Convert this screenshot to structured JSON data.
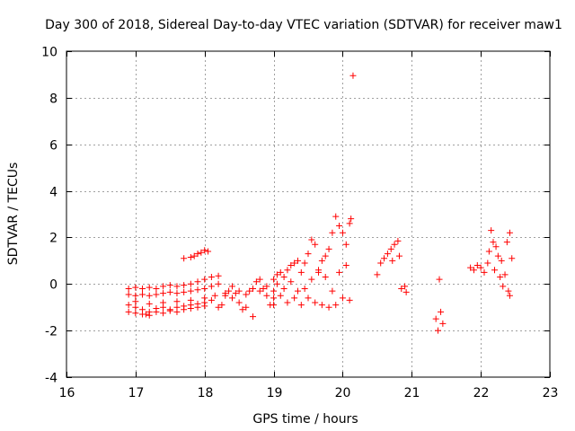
{
  "chart_data": {
    "type": "scatter",
    "title": "Day 300 of 2018, Sidereal Day-to-day VTEC variation (SDTVAR) for receiver maw1",
    "xlabel": "GPS time / hours",
    "ylabel": "SDTVAR / TECUs",
    "xlim": [
      16,
      23
    ],
    "ylim": [
      -4,
      10
    ],
    "xticks": [
      "16",
      "17",
      "18",
      "19",
      "20",
      "21",
      "22",
      "23"
    ],
    "yticks": [
      "-4",
      "-2",
      "0",
      "2",
      "4",
      "6",
      "8",
      "10"
    ],
    "grid": true,
    "marker": "+",
    "color": "#ff0000",
    "series": [
      {
        "name": "SDTVAR",
        "points": [
          [
            16.9,
            -0.2
          ],
          [
            17.0,
            -0.15
          ],
          [
            17.1,
            -0.2
          ],
          [
            17.2,
            -0.15
          ],
          [
            17.3,
            -0.2
          ],
          [
            17.4,
            -0.1
          ],
          [
            17.5,
            -0.05
          ],
          [
            17.6,
            -0.1
          ],
          [
            17.7,
            -0.05
          ],
          [
            17.8,
            0.0
          ],
          [
            17.9,
            0.1
          ],
          [
            18.0,
            0.2
          ],
          [
            18.1,
            0.3
          ],
          [
            18.2,
            0.35
          ],
          [
            16.9,
            -0.45
          ],
          [
            17.0,
            -0.5
          ],
          [
            17.1,
            -0.45
          ],
          [
            17.2,
            -0.5
          ],
          [
            17.3,
            -0.45
          ],
          [
            17.4,
            -0.4
          ],
          [
            17.5,
            -0.35
          ],
          [
            17.6,
            -0.4
          ],
          [
            17.7,
            -0.35
          ],
          [
            17.8,
            -0.3
          ],
          [
            17.9,
            -0.25
          ],
          [
            18.0,
            -0.2
          ],
          [
            18.1,
            -0.1
          ],
          [
            18.2,
            0.0
          ],
          [
            16.9,
            -0.9
          ],
          [
            17.0,
            -1.0
          ],
          [
            17.1,
            -1.1
          ],
          [
            17.15,
            -1.3
          ],
          [
            17.2,
            -1.2
          ],
          [
            17.3,
            -1.05
          ],
          [
            17.4,
            -1.0
          ],
          [
            17.5,
            -1.1
          ],
          [
            17.6,
            -1.0
          ],
          [
            17.7,
            -0.95
          ],
          [
            17.8,
            -0.9
          ],
          [
            17.9,
            -0.85
          ],
          [
            18.0,
            -0.8
          ],
          [
            18.1,
            -0.7
          ],
          [
            16.9,
            -1.2
          ],
          [
            17.0,
            -1.25
          ],
          [
            17.1,
            -1.3
          ],
          [
            17.2,
            -1.35
          ],
          [
            17.3,
            -1.2
          ],
          [
            17.4,
            -1.25
          ],
          [
            17.5,
            -1.15
          ],
          [
            17.6,
            -1.2
          ],
          [
            17.7,
            -1.1
          ],
          [
            17.8,
            -1.05
          ],
          [
            17.9,
            -1.0
          ],
          [
            18.0,
            -0.95
          ],
          [
            17.0,
            -0.75
          ],
          [
            17.2,
            -0.85
          ],
          [
            17.4,
            -0.8
          ],
          [
            17.6,
            -0.75
          ],
          [
            17.8,
            -0.7
          ],
          [
            18.0,
            -0.6
          ],
          [
            18.15,
            -0.5
          ],
          [
            17.7,
            1.1
          ],
          [
            17.8,
            1.15
          ],
          [
            17.85,
            1.2
          ],
          [
            17.9,
            1.3
          ],
          [
            17.95,
            1.35
          ],
          [
            18.0,
            1.45
          ],
          [
            18.05,
            1.4
          ],
          [
            18.2,
            -1.0
          ],
          [
            18.25,
            -0.9
          ],
          [
            18.3,
            -0.5
          ],
          [
            18.35,
            -0.3
          ],
          [
            18.4,
            -0.1
          ],
          [
            18.45,
            -0.4
          ],
          [
            18.5,
            -0.8
          ],
          [
            18.55,
            -1.1
          ],
          [
            18.6,
            -1.0
          ],
          [
            18.65,
            -0.3
          ],
          [
            18.7,
            -1.4
          ],
          [
            18.75,
            0.1
          ],
          [
            18.8,
            0.2
          ],
          [
            18.85,
            -0.2
          ],
          [
            18.9,
            -0.5
          ],
          [
            18.95,
            -0.9
          ],
          [
            19.0,
            -0.6
          ],
          [
            18.3,
            -0.4
          ],
          [
            18.4,
            -0.6
          ],
          [
            18.5,
            -0.3
          ],
          [
            18.6,
            -0.45
          ],
          [
            18.7,
            -0.2
          ],
          [
            18.8,
            -0.3
          ],
          [
            18.9,
            -0.1
          ],
          [
            19.0,
            -0.3
          ],
          [
            19.0,
            0.2
          ],
          [
            19.05,
            0.4
          ],
          [
            19.1,
            0.5
          ],
          [
            19.15,
            0.3
          ],
          [
            19.2,
            0.6
          ],
          [
            19.25,
            0.8
          ],
          [
            19.3,
            0.9
          ],
          [
            19.35,
            1.0
          ],
          [
            19.4,
            0.5
          ],
          [
            19.45,
            0.9
          ],
          [
            19.5,
            1.3
          ],
          [
            19.55,
            1.9
          ],
          [
            19.6,
            1.7
          ],
          [
            19.65,
            0.6
          ],
          [
            19.7,
            1.0
          ],
          [
            19.75,
            1.2
          ],
          [
            19.8,
            1.5
          ],
          [
            19.85,
            2.2
          ],
          [
            19.9,
            2.9
          ],
          [
            19.95,
            2.5
          ],
          [
            20.0,
            2.2
          ],
          [
            20.05,
            1.7
          ],
          [
            20.1,
            2.6
          ],
          [
            20.12,
            2.8
          ],
          [
            19.0,
            -0.9
          ],
          [
            19.1,
            -0.5
          ],
          [
            19.2,
            -0.8
          ],
          [
            19.3,
            -0.6
          ],
          [
            19.4,
            -0.9
          ],
          [
            19.5,
            -0.6
          ],
          [
            19.6,
            -0.8
          ],
          [
            19.7,
            -0.9
          ],
          [
            19.8,
            -1.0
          ],
          [
            19.9,
            -0.9
          ],
          [
            20.0,
            -0.6
          ],
          [
            20.1,
            -0.7
          ],
          [
            19.05,
            0.0
          ],
          [
            19.15,
            -0.2
          ],
          [
            19.25,
            0.1
          ],
          [
            19.35,
            -0.3
          ],
          [
            19.45,
            -0.2
          ],
          [
            19.55,
            0.2
          ],
          [
            19.65,
            0.5
          ],
          [
            19.75,
            0.3
          ],
          [
            19.85,
            -0.3
          ],
          [
            19.95,
            0.5
          ],
          [
            20.05,
            0.8
          ],
          [
            20.15,
            8.95
          ],
          [
            20.5,
            0.4
          ],
          [
            20.55,
            0.9
          ],
          [
            20.6,
            1.1
          ],
          [
            20.65,
            1.3
          ],
          [
            20.7,
            1.5
          ],
          [
            20.72,
            1.0
          ],
          [
            20.75,
            1.7
          ],
          [
            20.8,
            1.85
          ],
          [
            20.82,
            1.2
          ],
          [
            20.85,
            -0.2
          ],
          [
            20.9,
            -0.1
          ],
          [
            20.92,
            -0.35
          ],
          [
            21.35,
            -1.5
          ],
          [
            21.38,
            -2.0
          ],
          [
            21.42,
            -1.2
          ],
          [
            21.45,
            -1.7
          ],
          [
            21.4,
            0.2
          ],
          [
            21.85,
            0.7
          ],
          [
            21.9,
            0.6
          ],
          [
            21.95,
            0.8
          ],
          [
            22.0,
            0.7
          ],
          [
            22.05,
            0.5
          ],
          [
            22.1,
            0.9
          ],
          [
            22.12,
            1.4
          ],
          [
            22.15,
            2.3
          ],
          [
            22.18,
            1.8
          ],
          [
            22.2,
            0.6
          ],
          [
            22.22,
            1.6
          ],
          [
            22.25,
            1.2
          ],
          [
            22.28,
            0.3
          ],
          [
            22.3,
            1.0
          ],
          [
            22.32,
            -0.1
          ],
          [
            22.35,
            0.4
          ],
          [
            22.38,
            1.8
          ],
          [
            22.4,
            -0.3
          ],
          [
            22.42,
            2.2
          ],
          [
            22.45,
            1.1
          ],
          [
            22.42,
            -0.5
          ]
        ]
      }
    ]
  }
}
